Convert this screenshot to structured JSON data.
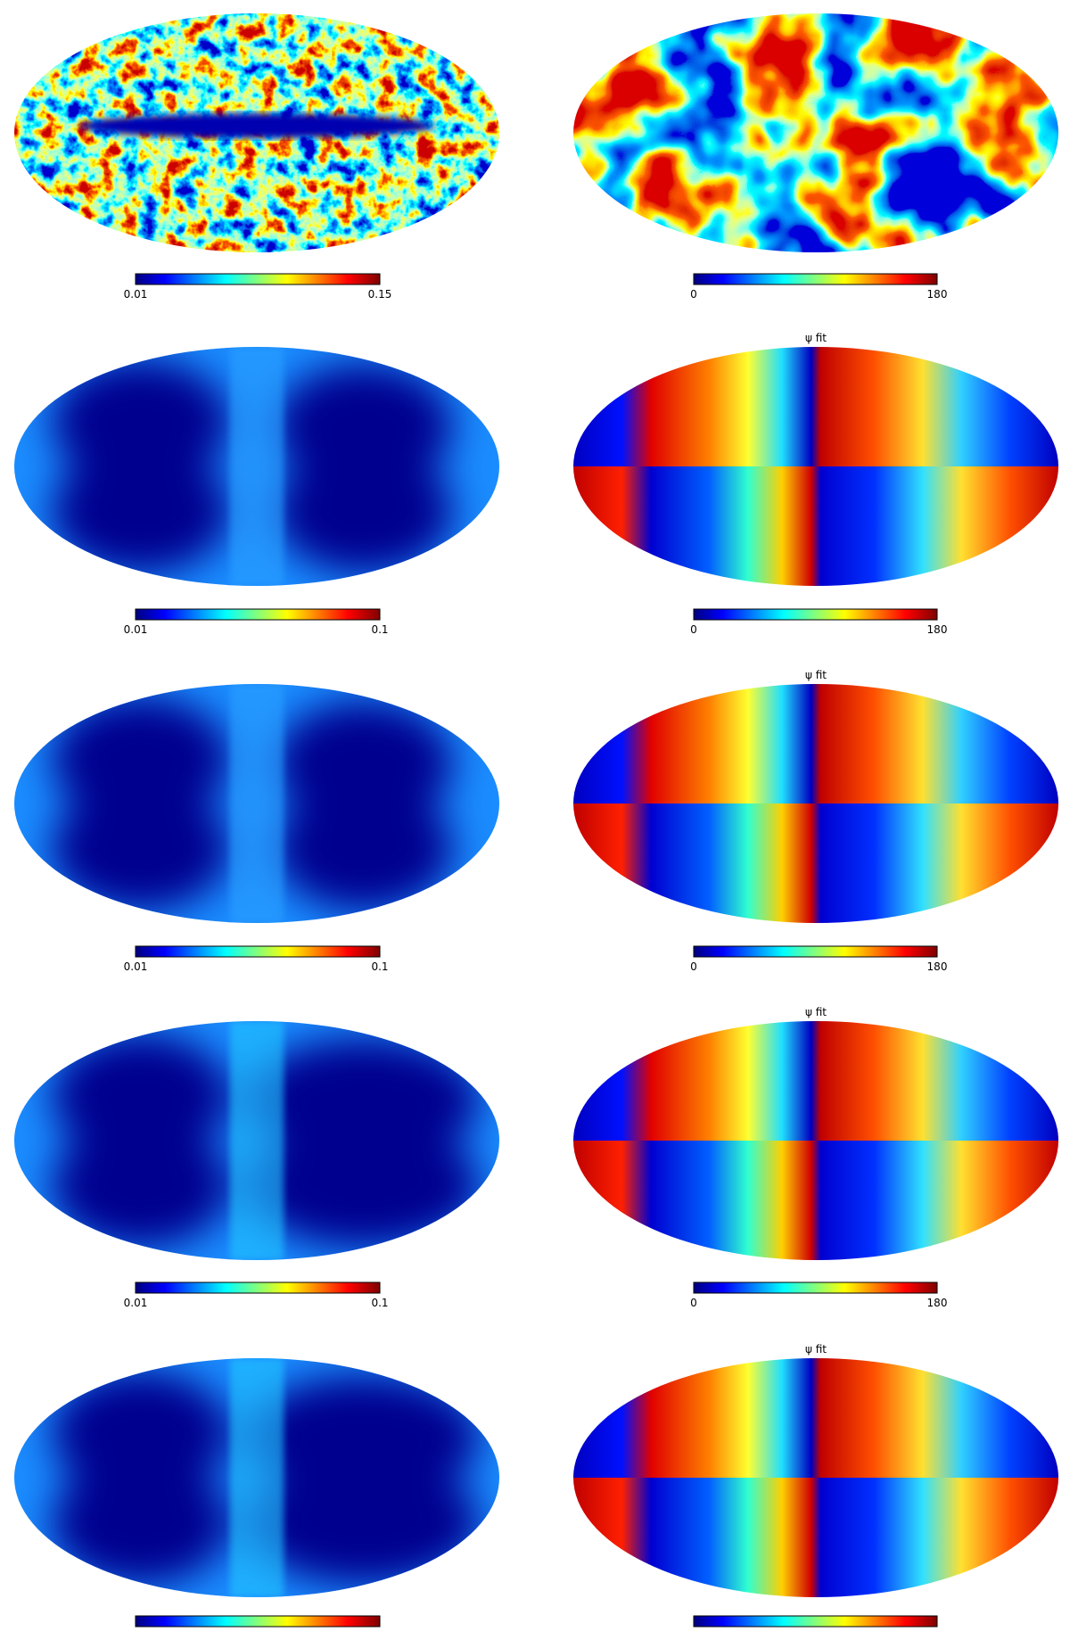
{
  "rows": [
    {
      "left": {
        "cbar_min": "0.01",
        "cbar_max": "0.15"
      },
      "right": {
        "cbar_min": "0",
        "cbar_max": "180"
      }
    },
    {
      "left": {
        "cbar_min": "0.01",
        "cbar_max": "0.1"
      },
      "right": {
        "title": "ψ fit",
        "cbar_min": "0",
        "cbar_max": "180"
      }
    },
    {
      "left": {
        "cbar_min": "0.01",
        "cbar_max": "0.1"
      },
      "right": {
        "title": "ψ fit",
        "cbar_min": "0",
        "cbar_max": "180"
      }
    },
    {
      "left": {
        "cbar_min": "0.01",
        "cbar_max": "0.1"
      },
      "right": {
        "title": "ψ fit",
        "cbar_min": "0",
        "cbar_max": "180"
      }
    },
    {
      "left": {},
      "right": {
        "title": "ψ fit"
      }
    }
  ]
}
